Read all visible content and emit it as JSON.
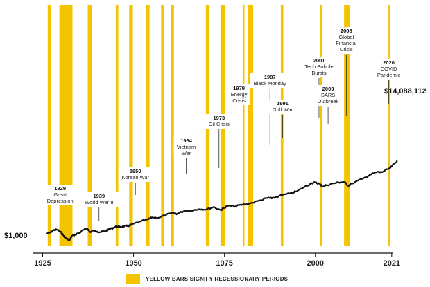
{
  "chart_data": {
    "type": "line",
    "start_label": "$1,000",
    "end_label": "$14,088,112",
    "x_ticks": [
      "1925",
      "1950",
      "1975",
      "2000",
      "2021"
    ],
    "legend": "YELLOW BARS SIGNIFY RECESSIONARY PERIODS",
    "recession_color": "#F5C400",
    "line_color": "#111111",
    "recessions": [
      [
        1926.4,
        1927.3
      ],
      [
        1929.6,
        1933.2
      ],
      [
        1937.4,
        1938.5
      ],
      [
        1945.1,
        1945.8
      ],
      [
        1948.8,
        1949.8
      ],
      [
        1953.5,
        1954.4
      ],
      [
        1957.6,
        1958.3
      ],
      [
        1960.3,
        1961.1
      ],
      [
        1969.9,
        1970.9
      ],
      [
        1973.9,
        1975.2
      ],
      [
        1980.0,
        1980.5
      ],
      [
        1981.5,
        1982.9
      ],
      [
        1990.5,
        1991.2
      ],
      [
        2001.2,
        2001.9
      ],
      [
        2007.9,
        2009.5
      ],
      [
        2020.1,
        2020.4
      ]
    ],
    "series": [
      {
        "points": [
          [
            1926,
            1000
          ],
          [
            1927,
            1150
          ],
          [
            1928,
            1600
          ],
          [
            1929,
            1700
          ],
          [
            1929.9,
            1300
          ],
          [
            1930.5,
            900
          ],
          [
            1931.5,
            550
          ],
          [
            1932.4,
            420
          ],
          [
            1933,
            750
          ],
          [
            1934,
            900
          ],
          [
            1935,
            1100
          ],
          [
            1936.5,
            1800
          ],
          [
            1937.3,
            1950
          ],
          [
            1938,
            1250
          ],
          [
            1939,
            1500
          ],
          [
            1940,
            1350
          ],
          [
            1941,
            1250
          ],
          [
            1942,
            1350
          ],
          [
            1943,
            1700
          ],
          [
            1944,
            2000
          ],
          [
            1945,
            2500
          ],
          [
            1946,
            2400
          ],
          [
            1947,
            2600
          ],
          [
            1948,
            2700
          ],
          [
            1949,
            2900
          ],
          [
            1950,
            3700
          ],
          [
            1952,
            5000
          ],
          [
            1954,
            6500
          ],
          [
            1955,
            8400
          ],
          [
            1957,
            8200
          ],
          [
            1959,
            12000
          ],
          [
            1961,
            15000
          ],
          [
            1962,
            13500
          ],
          [
            1964,
            20000
          ],
          [
            1966,
            20500
          ],
          [
            1968,
            25000
          ],
          [
            1970,
            24000
          ],
          [
            1972,
            33000
          ],
          [
            1974,
            22000
          ],
          [
            1975,
            30000
          ],
          [
            1976,
            38000
          ],
          [
            1978,
            36000
          ],
          [
            1980,
            45000
          ],
          [
            1982,
            52000
          ],
          [
            1985,
            80000
          ],
          [
            1987,
            110000
          ],
          [
            1988,
            100000
          ],
          [
            1990,
            140000
          ],
          [
            1993,
            190000
          ],
          [
            1995,
            260000
          ],
          [
            1997,
            450000
          ],
          [
            1999,
            750000
          ],
          [
            2000,
            800000
          ],
          [
            2001,
            700000
          ],
          [
            2002,
            480000
          ],
          [
            2003,
            560000
          ],
          [
            2005,
            720000
          ],
          [
            2007,
            850000
          ],
          [
            2008,
            850000
          ],
          [
            2009,
            530000
          ],
          [
            2010,
            700000
          ],
          [
            2013,
            1300000
          ],
          [
            2015,
            2200000
          ],
          [
            2017,
            3200000
          ],
          [
            2018,
            3000000
          ],
          [
            2020,
            4500000
          ],
          [
            2021,
            6500000
          ],
          [
            2022.5,
            14088112
          ]
        ]
      }
    ],
    "annotations": [
      {
        "year": "1929",
        "text": [
          "Great",
          "Depression"
        ],
        "x": 1929.8
      },
      {
        "year": "1939",
        "text": [
          "World War II"
        ],
        "x": 1940.5
      },
      {
        "year": "1950",
        "text": [
          "Korean War"
        ],
        "x": 1950.5
      },
      {
        "year": "1964",
        "text": [
          "Vietnam",
          "War"
        ],
        "x": 1964.5
      },
      {
        "year": "1973",
        "text": [
          "Oil Crisis"
        ],
        "x": 1973.5
      },
      {
        "year": "1979",
        "text": [
          "Energy",
          "Crisis"
        ],
        "x": 1979
      },
      {
        "year": "1987",
        "text": [
          "Black Monday"
        ],
        "x": 1987.5
      },
      {
        "year": "1991",
        "text": [
          "Gulf War"
        ],
        "x": 1991
      },
      {
        "year": "2001",
        "text": [
          "Tech Bubble",
          "Bursts"
        ],
        "x": 2001
      },
      {
        "year": "2003",
        "text": [
          "SARS",
          "Outbreak"
        ],
        "x": 2003.5
      },
      {
        "year": "2008",
        "text": [
          "Global",
          "Financial",
          "Crisis"
        ],
        "x": 2008.5
      },
      {
        "year": "2020",
        "text": [
          "COVID",
          "Pandemic"
        ],
        "x": 2020.2
      }
    ]
  }
}
